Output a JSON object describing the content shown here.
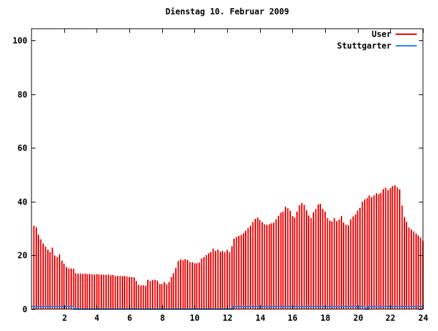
{
  "window": {
    "background": "#ffffff",
    "text_color": "#000000",
    "frame_color": "#000000"
  },
  "chart_data": {
    "type": "bar",
    "title": "Dienstag 10. Februar 2009",
    "xlabel": "",
    "ylabel": "",
    "x_unit": "hour-of-day",
    "xlim": [
      0,
      24
    ],
    "ylim": [
      0,
      104
    ],
    "xticks": [
      2,
      4,
      6,
      8,
      10,
      12,
      14,
      16,
      18,
      20,
      22,
      24
    ],
    "yticks": [
      0,
      20,
      40,
      60,
      80,
      100
    ],
    "grid": false,
    "legend_position": "top-right-inside",
    "bar_interval_hours": 0.142857,
    "series": [
      {
        "name": "User",
        "type": "impulses",
        "color": "#ee0000",
        "values": [
          31.0,
          30.4,
          27.7,
          25.9,
          24.4,
          23.3,
          22.2,
          21.3,
          22.9,
          20.0,
          19.3,
          20.4,
          18.1,
          16.9,
          15.6,
          15.2,
          15.1,
          15.0,
          13.3,
          13.2,
          13.2,
          13.1,
          13.2,
          13.0,
          13.1,
          13.0,
          12.9,
          13.0,
          12.9,
          12.8,
          12.9,
          12.7,
          12.8,
          12.6,
          12.7,
          12.4,
          12.3,
          12.4,
          12.2,
          12.3,
          12.1,
          12.0,
          11.9,
          11.8,
          10.4,
          9.0,
          8.8,
          8.9,
          8.7,
          10.9,
          10.4,
          10.8,
          11.0,
          10.6,
          9.4,
          9.3,
          10.0,
          9.3,
          10.1,
          11.9,
          13.4,
          15.3,
          17.9,
          18.4,
          18.2,
          18.6,
          18.3,
          17.6,
          17.4,
          17.1,
          17.0,
          17.3,
          18.8,
          19.4,
          20.1,
          20.7,
          21.2,
          22.5,
          21.6,
          22.2,
          21.4,
          21.6,
          21.3,
          22.0,
          21.2,
          23.4,
          26.2,
          26.8,
          27.2,
          27.6,
          28.3,
          29.1,
          30.2,
          31.0,
          32.4,
          33.6,
          34.1,
          33.2,
          32.3,
          31.5,
          31.3,
          31.5,
          31.9,
          32.2,
          33.4,
          34.7,
          35.9,
          36.3,
          38.1,
          37.5,
          36.7,
          34.6,
          34.1,
          36.3,
          38.7,
          39.4,
          38.8,
          36.8,
          34.9,
          33.9,
          36.0,
          37.3,
          38.9,
          39.2,
          37.3,
          36.2,
          33.8,
          32.9,
          32.6,
          33.8,
          32.7,
          33.3,
          34.6,
          32.2,
          31.4,
          31.2,
          33.5,
          34.5,
          35.3,
          36.7,
          37.6,
          39.9,
          40.8,
          41.3,
          42.2,
          41.6,
          42.4,
          43.1,
          42.8,
          43.3,
          44.7,
          45.2,
          44.3,
          45.0,
          45.8,
          46.1,
          45.3,
          44.5,
          38.6,
          34.2,
          32.5,
          30.4,
          29.6,
          28.9,
          28.1,
          27.3,
          26.6,
          25.4
        ]
      },
      {
        "name": "Stuttgarter",
        "type": "line",
        "color": "#1c86ee",
        "points": [
          [
            0,
            1.0
          ],
          [
            2.57,
            1.0
          ],
          [
            2.57,
            0
          ],
          [
            12.33,
            0
          ],
          [
            12.33,
            1.0
          ],
          [
            20.45,
            1.0
          ],
          [
            20.45,
            0
          ],
          [
            20.64,
            0
          ],
          [
            20.64,
            1.0
          ],
          [
            24,
            1.0
          ]
        ]
      }
    ]
  }
}
